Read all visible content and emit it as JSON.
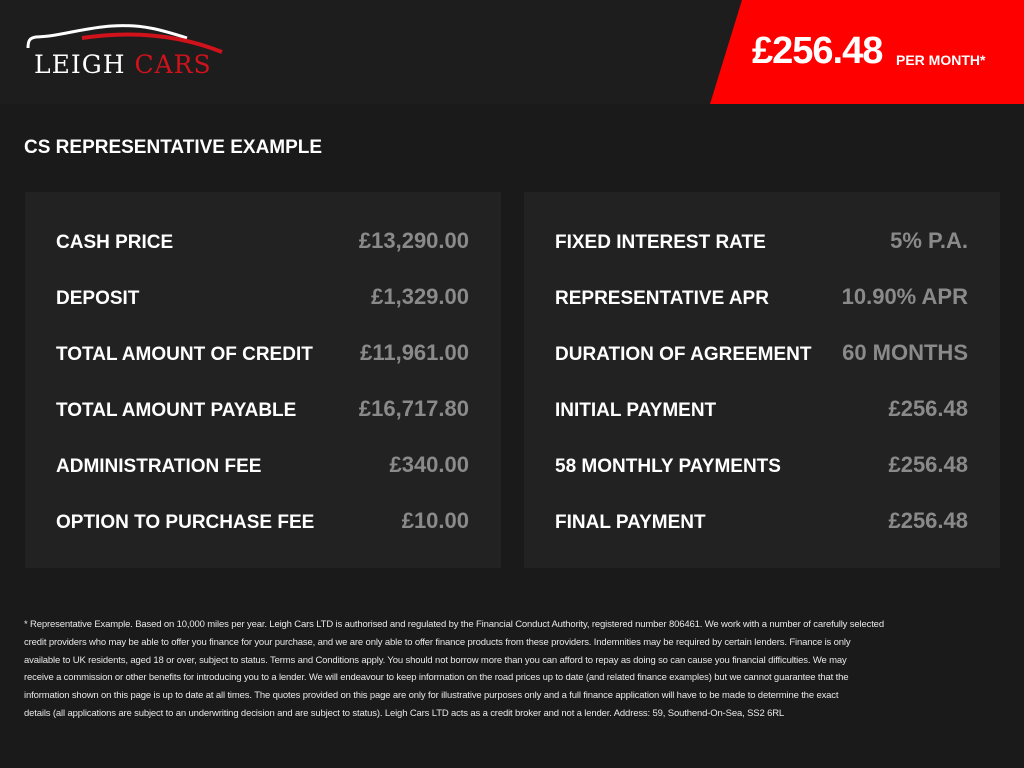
{
  "brand": {
    "name_part1": "LEIGH",
    "name_part2": "CARS",
    "accent": "#d0121b"
  },
  "banner": {
    "price": "£256.48",
    "suffix": "PER MONTH*",
    "color": "#ff0000"
  },
  "section_title": "CS REPRESENTATIVE EXAMPLE",
  "left_rows": [
    {
      "label": "CASH PRICE",
      "value": "£13,290.00"
    },
    {
      "label": "DEPOSIT",
      "value": "£1,329.00"
    },
    {
      "label": "TOTAL AMOUNT OF CREDIT",
      "value": "£11,961.00"
    },
    {
      "label": "TOTAL AMOUNT PAYABLE",
      "value": "£16,717.80"
    },
    {
      "label": "ADMINISTRATION FEE",
      "value": "£340.00"
    },
    {
      "label": "OPTION TO PURCHASE FEE",
      "value": "£10.00"
    }
  ],
  "right_rows": [
    {
      "label": "FIXED INTEREST RATE",
      "value": "5% P.A."
    },
    {
      "label": "REPRESENTATIVE APR",
      "value": "10.90% APR"
    },
    {
      "label": "DURATION OF AGREEMENT",
      "value": "60 MONTHS"
    },
    {
      "label": "INITIAL PAYMENT",
      "value": "£256.48"
    },
    {
      "label": "58 MONTHLY PAYMENTS",
      "value": "£256.48"
    },
    {
      "label": "FINAL PAYMENT",
      "value": "£256.48"
    }
  ],
  "disclaimer_lines": [
    "* Representative Example. Based on 10,000 miles per year. Leigh Cars LTD is authorised and regulated by the Financial Conduct Authority, registered number 806461. We work with a number of carefully selected",
    "credit providers who may be able to offer you finance for your purchase, and we are only able to offer finance products from these providers. Indemnities may be required by certain lenders. Finance is only",
    "available to UK residents, aged 18 or over, subject to status. Terms and Conditions apply. You should not borrow more than you can afford to repay as doing so can cause you financial difficulties. We may",
    "receive a commission or other benefits for introducing you to a lender. We will endeavour to keep information on the road prices up to date (and related finance examples) but we cannot guarantee that the",
    "information shown on this page is up to date at all times. The quotes provided on this page are only for illustrative purposes only and a full finance application will have to be made to determine the exact",
    "details (all applications are subject to an underwriting decision and are subject to status). Leigh Cars LTD acts as a credit broker and not a lender. Address:  59, Southend-On-Sea, SS2 6RL"
  ]
}
